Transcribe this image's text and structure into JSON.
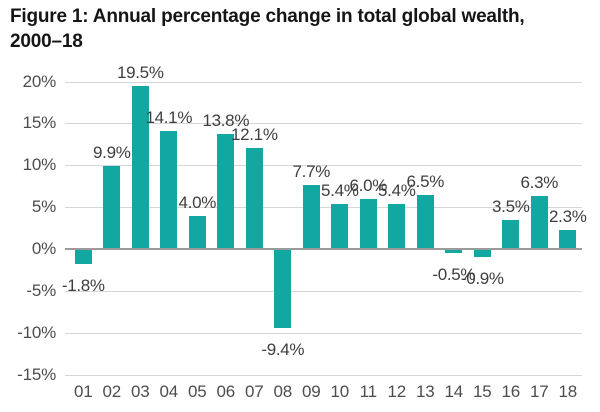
{
  "figure": {
    "title_lines": [
      "Figure 1: Annual percentage change in total global wealth,",
      "2000–18"
    ]
  },
  "chart_data": {
    "type": "bar",
    "title": "Figure 1: Annual percentage change in total global wealth, 2000–18",
    "categories": [
      "01",
      "02",
      "03",
      "04",
      "05",
      "06",
      "07",
      "08",
      "09",
      "10",
      "11",
      "12",
      "13",
      "14",
      "15",
      "16",
      "17",
      "18"
    ],
    "values": [
      -1.8,
      9.9,
      19.5,
      14.1,
      4.0,
      13.8,
      12.1,
      -9.4,
      7.7,
      5.4,
      6.0,
      5.4,
      6.5,
      -0.5,
      -0.9,
      3.5,
      6.3,
      2.3
    ],
    "data_labels": [
      "-1.8%",
      "9.9%",
      "19.5%",
      "14.1%",
      "4.0%",
      "13.8%",
      "12.1%",
      "-9.4%",
      "7.7%",
      "5.4%",
      "6.0%",
      "5.4%",
      "6.5%",
      "-0.5%",
      "-0.9%",
      "3.5%",
      "6.3%",
      "2.3%"
    ],
    "xlabel": "",
    "ylabel": "",
    "ylim": [
      -15,
      20
    ],
    "grid": "horizontal",
    "legend": "none",
    "y_axis_ticks": [
      {
        "label": "20%",
        "value": 20
      },
      {
        "label": "15%",
        "value": 15
      },
      {
        "label": "10%",
        "value": 10
      },
      {
        "label": "5%",
        "value": 5
      },
      {
        "label": "0%",
        "value": 0
      },
      {
        "label": "-5%",
        "value": -5
      },
      {
        "label": "-10%",
        "value": -10
      },
      {
        "label": "-15%",
        "value": -15
      }
    ],
    "colors": {
      "bar": "#12a7a1",
      "gridline": "#d6d6d6",
      "zero_line": "#9b9b9b",
      "tick_label": "#4d4d4f",
      "data_label": "#3e3e40",
      "title": "#151517",
      "background": "#ffffff"
    }
  }
}
